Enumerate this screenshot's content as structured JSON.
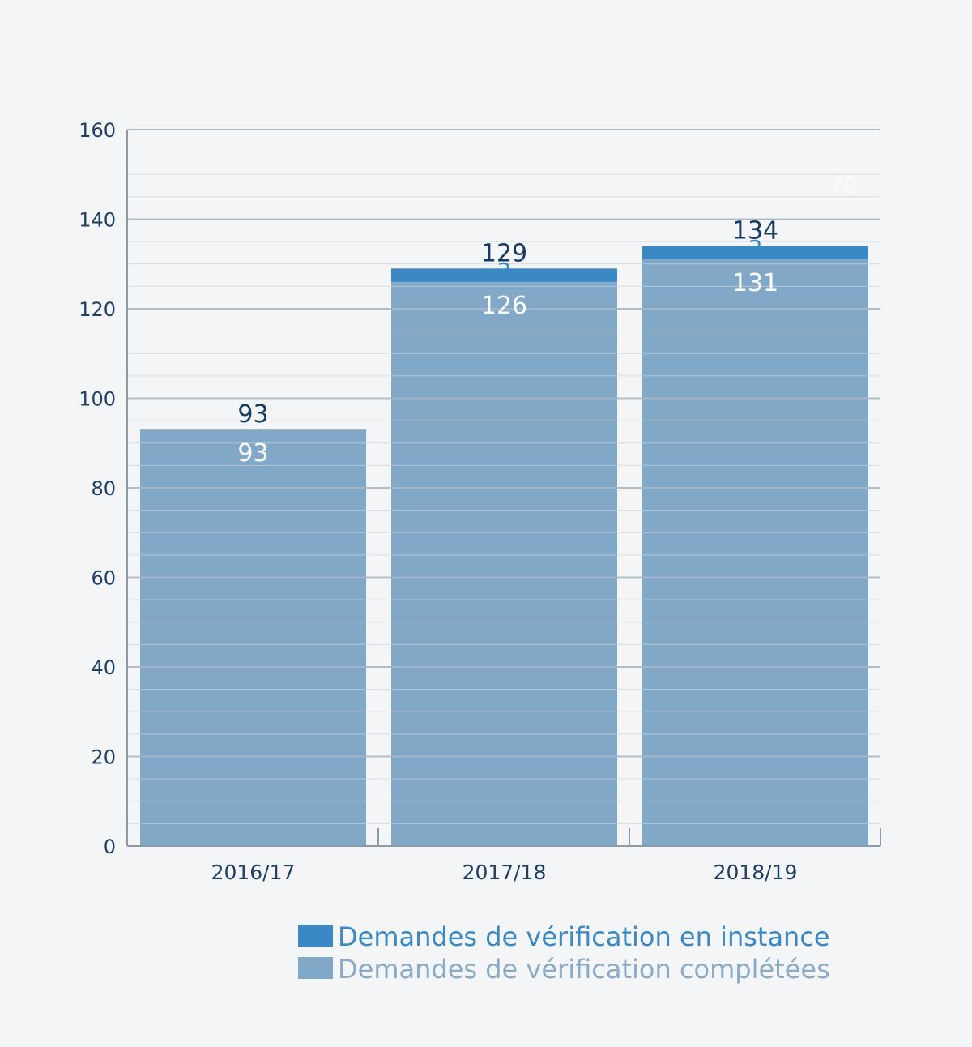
{
  "chart_data": {
    "type": "bar",
    "stacked": true,
    "title": "",
    "xlabel": "",
    "ylabel": "",
    "ylim": [
      0,
      160
    ],
    "y_major_ticks": [
      0,
      20,
      40,
      60,
      80,
      100,
      120,
      140,
      160
    ],
    "y_minor_step": 5,
    "grid": true,
    "legend_position": "bottom",
    "categories": [
      "2016/17",
      "2017/18",
      "2018/19"
    ],
    "series": [
      {
        "name": "Demandes de vérification complétées",
        "values": [
          93,
          126,
          131
        ],
        "color": "#82a8c8"
      },
      {
        "name": "Demandes de vérification en instance",
        "values": [
          0,
          3,
          3
        ],
        "color": "#3a88c4"
      }
    ],
    "totals": [
      93,
      129,
      134
    ],
    "data_labels": {
      "completed": [
        "93",
        "126",
        "131"
      ],
      "pending": [
        "",
        "3",
        "3"
      ],
      "totals": [
        "93",
        "129",
        "134"
      ]
    },
    "stray_annotation": "70",
    "legend": [
      {
        "label": "Demandes de vérification en instance",
        "color": "#3a88c4",
        "text_color": "#3a88c4"
      },
      {
        "label": "Demandes de vérification complétées",
        "color": "#82a8c8",
        "text_color": "#8aaac8"
      }
    ],
    "colors": {
      "grid_major": "#a9b7c5",
      "grid_minor": "#ccd3da",
      "axis": "#8c99a6"
    }
  }
}
